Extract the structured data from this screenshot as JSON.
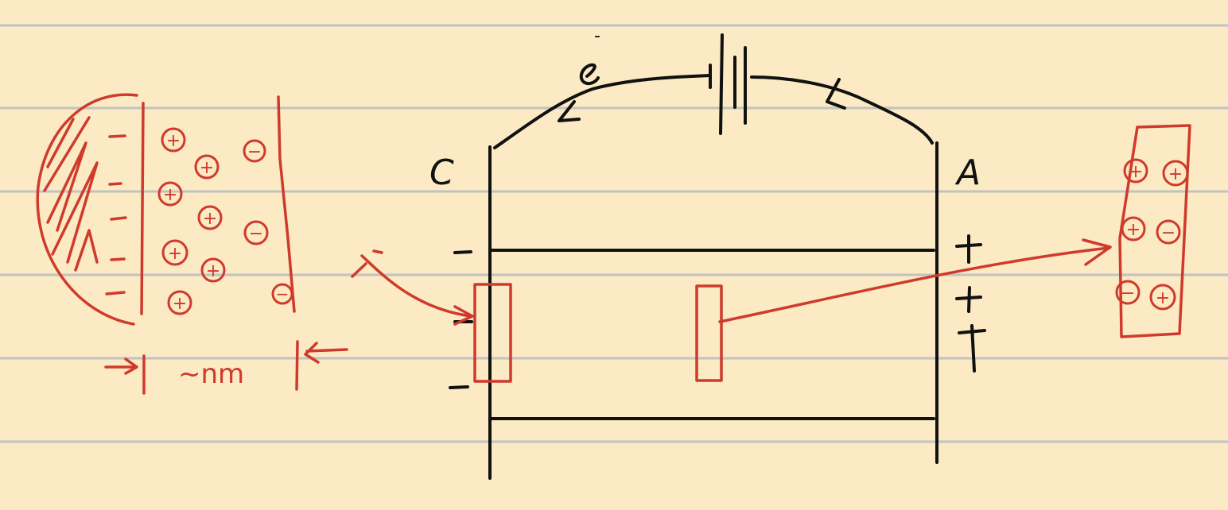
{
  "page": {
    "paper_color": "#fbeac3",
    "rule_color": "#c2c2c2",
    "ink_black": "#111111",
    "ink_red": "#cf3a2c"
  },
  "labels": {
    "cathode": "C",
    "anode": "A",
    "electron": "e",
    "electron_charge": "-",
    "length_scale": "~nm",
    "electrode_charge_negative": "-",
    "electrode_charge_positive": "+"
  },
  "symbols": {
    "cation": "+",
    "anion": "−"
  },
  "ions": {
    "left_zoom": [
      "+",
      "+",
      "−",
      "+",
      "+",
      "−",
      "+",
      "+",
      "+",
      "−",
      "−"
    ],
    "right_zoom": [
      "+",
      "+",
      "+",
      "−",
      "−",
      "+"
    ]
  }
}
